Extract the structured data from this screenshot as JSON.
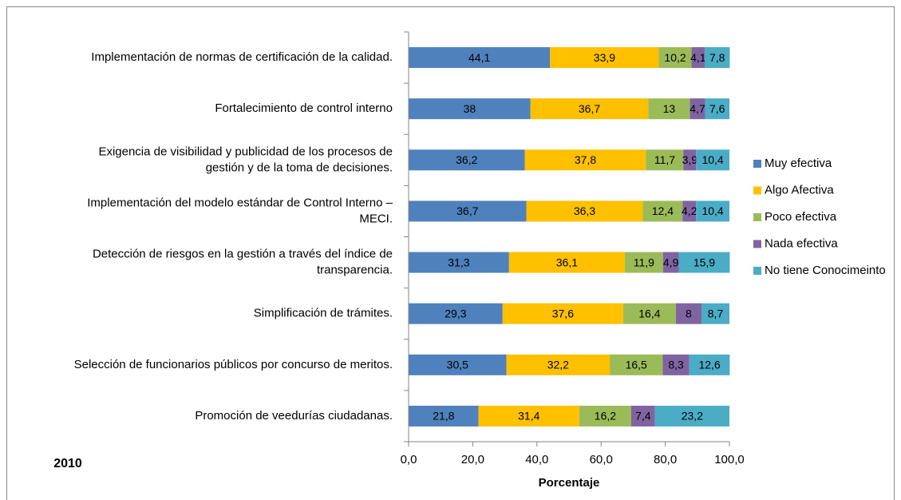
{
  "chart_data": {
    "type": "stacked_barh",
    "annotation": "2010",
    "x_label": "Porcentaje",
    "categories": [
      "Implementación de normas de certificación de la calidad.",
      "Fortalecimiento de control interno",
      "Exigencia de visibilidad y publicidad de los procesos de\ngestión y de la toma de decisiones.",
      "Implementación del modelo estándar de Control Interno –\nMECI.",
      "Detección de riesgos en la gestión a través del índice de\ntransparencia.",
      "Simplificación de trámites.",
      "Selección de funcionarios públicos  por concurso de meritos.",
      "Promoción de veedurías ciudadanas."
    ],
    "series": [
      {
        "name": "Muy efectiva",
        "color": "#4f81bd",
        "values": [
          44.1,
          38,
          36.2,
          36.7,
          31.3,
          29.3,
          30.5,
          21.8
        ],
        "value_labels": [
          "44,1",
          "38",
          "36,2",
          "36,7",
          "31,3",
          "29,3",
          "30,5",
          "21,8"
        ]
      },
      {
        "name": "Algo Afectiva",
        "color": "#ffc000",
        "values": [
          33.9,
          36.7,
          37.8,
          36.3,
          36.1,
          37.6,
          32.2,
          31.4
        ],
        "value_labels": [
          "33,9",
          "36,7",
          "37,8",
          "36,3",
          "36,1",
          "37,6",
          "32,2",
          "31,4"
        ]
      },
      {
        "name": "Poco efectiva",
        "color": "#9bbb59",
        "values": [
          10.2,
          13,
          11.7,
          12.4,
          11.9,
          16.4,
          16.5,
          16.2
        ],
        "value_labels": [
          "10,2",
          "13",
          "11,7",
          "12,4",
          "11,9",
          "16,4",
          "16,5",
          "16,2"
        ]
      },
      {
        "name": "Nada efectiva",
        "color": "#8064a2",
        "values": [
          4.1,
          4.7,
          3.9,
          4.2,
          4.9,
          8,
          8.3,
          7.4
        ],
        "value_labels": [
          "4,1",
          "4,7",
          "3,9",
          "4,2",
          "4,9",
          "8",
          "8,3",
          "7,4"
        ]
      },
      {
        "name": "No tiene Conocimeinto",
        "color": "#4bacc6",
        "values": [
          7.8,
          7.6,
          10.4,
          10.4,
          15.9,
          8.7,
          12.6,
          23.2
        ],
        "value_labels": [
          "7,8",
          "7,6",
          "10,4",
          "10,4",
          "15,9",
          "8,7",
          "12,6",
          "23,2"
        ]
      }
    ],
    "xlim": [
      0,
      100
    ],
    "xticks": [
      {
        "value": 0,
        "label": "0,0"
      },
      {
        "value": 20,
        "label": "20,0"
      },
      {
        "value": 40,
        "label": "40,0"
      },
      {
        "value": 60,
        "label": "60,0"
      },
      {
        "value": 80,
        "label": "80,0"
      },
      {
        "value": 100,
        "label": "100,0"
      }
    ],
    "legend": "right"
  }
}
